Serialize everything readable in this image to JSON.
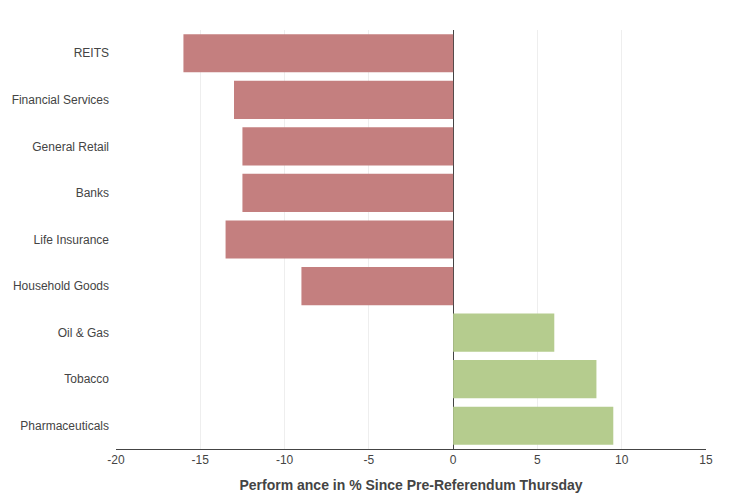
{
  "chart_data": {
    "type": "bar",
    "orientation": "horizontal",
    "categories": [
      "REITS",
      "Financial Services",
      "General Retail",
      "Banks",
      "Life Insurance",
      "Household Goods",
      "Oil & Gas",
      "Tobacco",
      "Pharmaceuticals"
    ],
    "values": [
      -16.0,
      -13.0,
      -12.5,
      -12.5,
      -13.5,
      -9.0,
      6.0,
      8.5,
      9.5
    ],
    "colors": [
      "#c47f7f",
      "#c47f7f",
      "#c47f7f",
      "#c47f7f",
      "#c47f7f",
      "#c47f7f",
      "#b5cc8e",
      "#b5cc8e",
      "#b5cc8e"
    ],
    "xlabel": "Perform ance in % Since Pre-Referendum Thursday",
    "xlim": [
      -20,
      15
    ],
    "xticks": [
      -20,
      -15,
      -10,
      -5,
      0,
      5,
      10,
      15
    ],
    "grid": true
  }
}
